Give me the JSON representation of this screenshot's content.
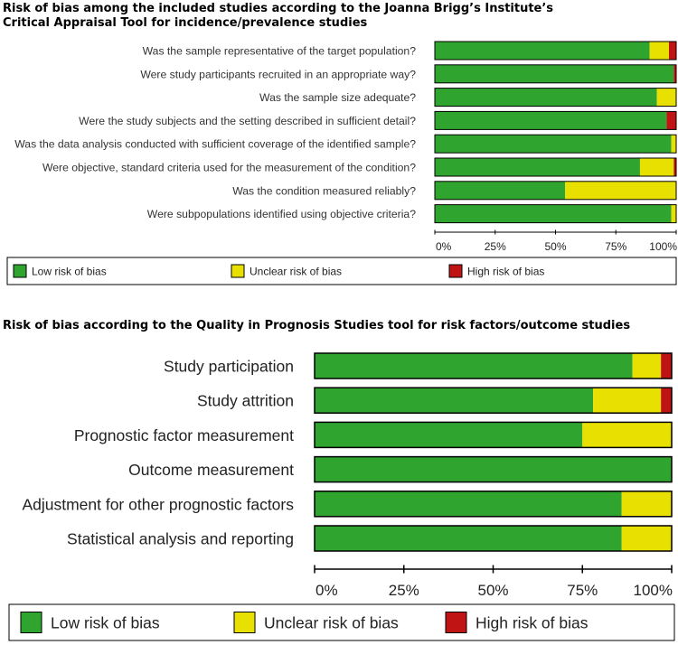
{
  "colors": {
    "low": "#2fa52f",
    "unclear": "#e8e000",
    "high": "#c01414"
  },
  "chart_data": [
    {
      "type": "bar",
      "orientation": "horizontal-stacked",
      "title_line1": "Risk of bias among the included studies according to the Joanna Brigg’s Institute’s",
      "title_line2": "Critical Appraisal Tool for incidence/prevalence studies",
      "categories": [
        "Was the sample representative of the target population?",
        "Were study participants recruited in an appropriate way?",
        "Was the sample size adequate?",
        "Were the study subjects and the setting described in sufficient detail?",
        "Was the data analysis conducted with sufficient coverage of the identified sample?",
        "Were objective, standard criteria used for the measurement of the condition?",
        "Was the condition measured reliably?",
        "Were subpopulations identified using objective criteria?"
      ],
      "series": [
        {
          "name": "Low risk of bias",
          "key": "low",
          "values": [
            89,
            99,
            92,
            96,
            98,
            85,
            54,
            98
          ]
        },
        {
          "name": "Unclear risk of bias",
          "key": "unclear",
          "values": [
            8,
            0,
            8,
            0,
            2,
            14,
            46,
            2
          ]
        },
        {
          "name": "High risk of bias",
          "key": "high",
          "values": [
            3,
            1,
            0,
            4,
            0,
            1,
            0,
            0
          ]
        }
      ],
      "xticks": [
        "0%",
        "25%",
        "50%",
        "75%",
        "100%"
      ],
      "xlim": [
        0,
        100
      ]
    },
    {
      "type": "bar",
      "orientation": "horizontal-stacked",
      "title": "Risk of bias according to the Quality in Prognosis Studies tool for risk factors/outcome studies",
      "categories": [
        "Study participation",
        "Study attrition",
        "Prognostic factor measurement",
        "Outcome measurement",
        "Adjustment for other prognostic factors",
        "Statistical analysis and reporting"
      ],
      "series": [
        {
          "name": "Low risk of bias",
          "key": "low",
          "values": [
            89,
            78,
            75,
            100,
            86,
            86
          ]
        },
        {
          "name": "Unclear risk of bias",
          "key": "unclear",
          "values": [
            8,
            19,
            25,
            0,
            14,
            14
          ]
        },
        {
          "name": "High risk of bias",
          "key": "high",
          "values": [
            3,
            3,
            0,
            0,
            0,
            0
          ]
        }
      ],
      "xticks": [
        "0%",
        "25%",
        "50%",
        "75%",
        "100%"
      ],
      "xlim": [
        0,
        100
      ]
    }
  ]
}
